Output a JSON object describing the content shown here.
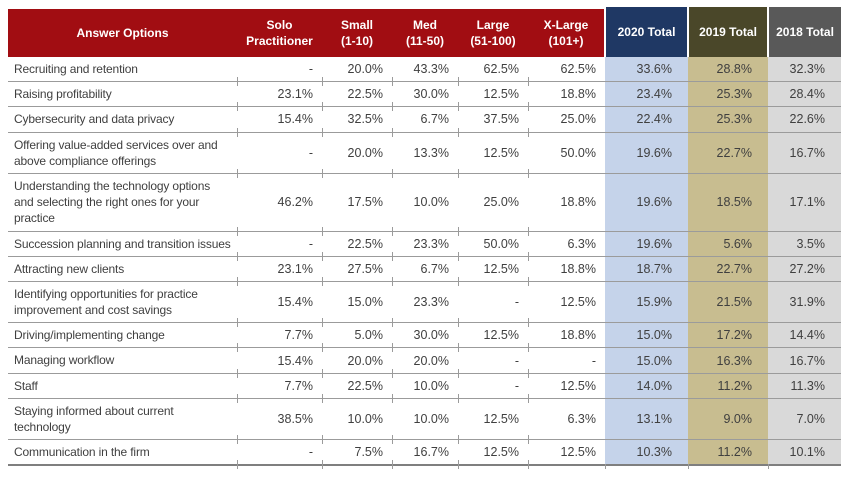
{
  "colors": {
    "header_red": "#A10D12",
    "header_navy": "#1F3864",
    "header_olive": "#4A4729",
    "header_gray": "#595959",
    "col_2020_bg": "#C5D3EA",
    "col_2019_bg": "#C8BD90",
    "col_2018_bg": "#D9D9D9",
    "row_rule": "#9B9B9B",
    "body_text": "#3F3F3F"
  },
  "chart_data": {
    "type": "table",
    "columns": [
      {
        "id": "answer-options",
        "label_lines": [
          "Answer Options"
        ]
      },
      {
        "id": "solo-practitioner",
        "label_lines": [
          "Solo",
          "Practitioner"
        ]
      },
      {
        "id": "small",
        "label_lines": [
          "Small",
          "(1-10)"
        ]
      },
      {
        "id": "med",
        "label_lines": [
          "Med",
          "(11-50)"
        ]
      },
      {
        "id": "large",
        "label_lines": [
          "Large",
          "(51-100)"
        ]
      },
      {
        "id": "x-large",
        "label_lines": [
          "X-Large",
          "(101+)"
        ]
      },
      {
        "id": "total-2020",
        "label_lines": [
          "2020 Total"
        ]
      },
      {
        "id": "total-2019",
        "label_lines": [
          "2019 Total"
        ]
      },
      {
        "id": "total-2018",
        "label_lines": [
          "2018 Total"
        ]
      }
    ],
    "rows": [
      {
        "label": "Recruiting and retention",
        "values": [
          "-",
          "20.0%",
          "43.3%",
          "62.5%",
          "62.5%",
          "33.6%",
          "28.8%",
          "32.3%"
        ]
      },
      {
        "label": "Raising profitability",
        "values": [
          "23.1%",
          "22.5%",
          "30.0%",
          "12.5%",
          "18.8%",
          "23.4%",
          "25.3%",
          "28.4%"
        ]
      },
      {
        "label": "Cybersecurity and data privacy",
        "values": [
          "15.4%",
          "32.5%",
          "6.7%",
          "37.5%",
          "25.0%",
          "22.4%",
          "25.3%",
          "22.6%"
        ]
      },
      {
        "label": "Offering value-added services over and above compliance offerings",
        "values": [
          "-",
          "20.0%",
          "13.3%",
          "12.5%",
          "50.0%",
          "19.6%",
          "22.7%",
          "16.7%"
        ]
      },
      {
        "label": "Understanding the technology options and selecting the right ones for your practice",
        "values": [
          "46.2%",
          "17.5%",
          "10.0%",
          "25.0%",
          "18.8%",
          "19.6%",
          "18.5%",
          "17.1%"
        ]
      },
      {
        "label": "Succession planning and transition issues",
        "values": [
          "-",
          "22.5%",
          "23.3%",
          "50.0%",
          "6.3%",
          "19.6%",
          "5.6%",
          "3.5%"
        ]
      },
      {
        "label": "Attracting new clients",
        "values": [
          "23.1%",
          "27.5%",
          "6.7%",
          "12.5%",
          "18.8%",
          "18.7%",
          "22.7%",
          "27.2%"
        ]
      },
      {
        "label": "Identifying opportunities for practice improvement and cost savings",
        "values": [
          "15.4%",
          "15.0%",
          "23.3%",
          "-",
          "12.5%",
          "15.9%",
          "21.5%",
          "31.9%"
        ]
      },
      {
        "label": "Driving/implementing change",
        "values": [
          "7.7%",
          "5.0%",
          "30.0%",
          "12.5%",
          "18.8%",
          "15.0%",
          "17.2%",
          "14.4%"
        ]
      },
      {
        "label": "Managing workflow",
        "values": [
          "15.4%",
          "20.0%",
          "20.0%",
          "-",
          "-",
          "15.0%",
          "16.3%",
          "16.7%"
        ]
      },
      {
        "label": "Staff",
        "values": [
          "7.7%",
          "22.5%",
          "10.0%",
          "-",
          "12.5%",
          "14.0%",
          "11.2%",
          "11.3%"
        ]
      },
      {
        "label": "Staying informed about current technology",
        "values": [
          "38.5%",
          "10.0%",
          "10.0%",
          "12.5%",
          "6.3%",
          "13.1%",
          "9.0%",
          "7.0%"
        ]
      },
      {
        "label": "Communication in the firm",
        "values": [
          "-",
          "7.5%",
          "16.7%",
          "12.5%",
          "12.5%",
          "10.3%",
          "11.2%",
          "10.1%"
        ]
      }
    ]
  }
}
